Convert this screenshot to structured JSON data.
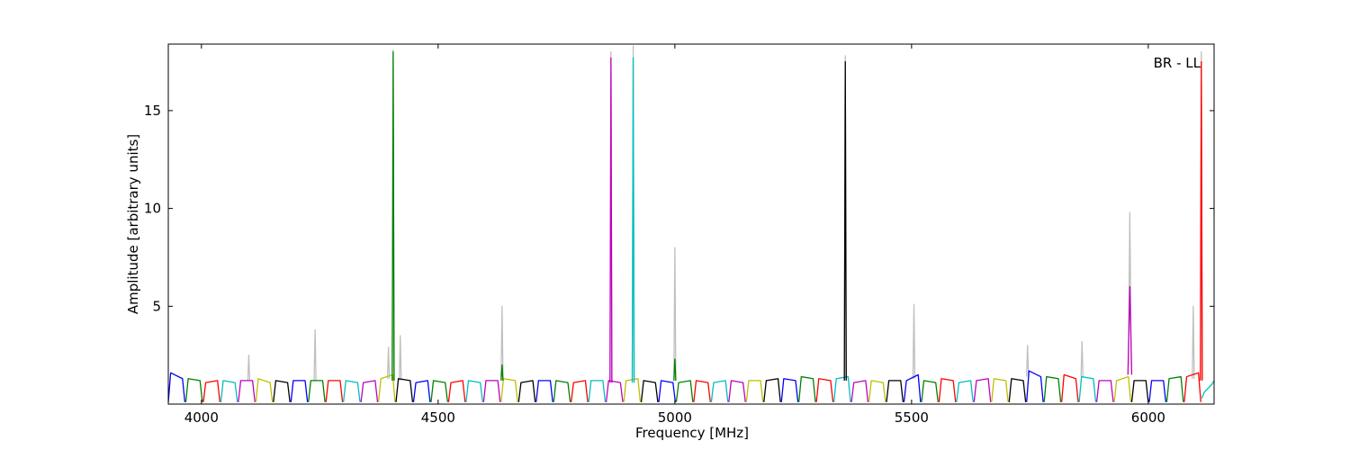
{
  "chart_data": {
    "type": "line",
    "annotation": "BR - LL",
    "x_label": "Frequency [MHz]",
    "y_label": "Amplitude [arbitrary units]",
    "xlim": [
      3930,
      6139
    ],
    "ylim": [
      0,
      18.4
    ],
    "xticks": [
      4000,
      4500,
      5000,
      5500,
      6000
    ],
    "yticks": [
      5,
      10,
      15
    ],
    "series": [
      {
        "color": "#bfbfbf",
        "x": [
          4098,
          4100,
          4102,
          null,
          4238,
          4240,
          4242,
          null,
          4393,
          4395,
          4397,
          null,
          4403,
          4405,
          4407,
          null,
          4418,
          4420,
          4422,
          null,
          4633,
          4635,
          4637,
          null,
          4863,
          4865,
          4867,
          null,
          4910,
          4912,
          4914,
          null,
          4998,
          5000,
          5002,
          null,
          5358,
          5360,
          5362,
          null,
          5503,
          5505,
          5507,
          null,
          5743,
          5745,
          5747,
          null,
          5858,
          5860,
          5862,
          null,
          5958,
          5961,
          5964,
          null,
          6093,
          6095,
          6097,
          null,
          6110,
          6112,
          6114
        ],
        "values": [
          1.2,
          2.5,
          1.2,
          null,
          1.2,
          3.8,
          1.2,
          null,
          1.3,
          2.9,
          1.3,
          null,
          1.2,
          18.1,
          1.2,
          null,
          1.2,
          3.5,
          1.2,
          null,
          1.3,
          5.0,
          1.3,
          null,
          1.1,
          18.0,
          1.1,
          null,
          1.1,
          18.3,
          1.1,
          null,
          1.2,
          8.0,
          1.2,
          null,
          1.2,
          17.8,
          1.2,
          null,
          1.3,
          5.1,
          1.3,
          null,
          1.4,
          3.0,
          1.4,
          null,
          1.4,
          3.2,
          1.4,
          null,
          2.0,
          9.8,
          2.0,
          null,
          1.3,
          5.0,
          1.3,
          null,
          1.3,
          18.0,
          1.3
        ]
      },
      {
        "color": "#0000ff",
        "x": [
          3930,
          3935,
          3960,
          3965
        ],
        "values": [
          0.1,
          1.6,
          1.3,
          0.1
        ]
      },
      {
        "color": "#008000",
        "x": [
          3967,
          3972,
          3997,
          4002
        ],
        "values": [
          0.1,
          1.3,
          1.2,
          0.1
        ]
      },
      {
        "color": "#ff0000",
        "x": [
          4004,
          4009,
          4034,
          4039
        ],
        "values": [
          0.1,
          1.1,
          1.2,
          0.1
        ]
      },
      {
        "color": "#00bfbf",
        "x": [
          4041,
          4046,
          4071,
          4076
        ],
        "values": [
          0.1,
          1.2,
          1.1,
          0.1
        ]
      },
      {
        "color": "#bf00bf",
        "x": [
          4078,
          4083,
          4108,
          4113
        ],
        "values": [
          0.1,
          1.2,
          1.2,
          0.1
        ]
      },
      {
        "color": "#bfbf00",
        "x": [
          4115,
          4120,
          4145,
          4150
        ],
        "values": [
          0.1,
          1.3,
          1.1,
          0.1
        ]
      },
      {
        "color": "#000000",
        "x": [
          4152,
          4157,
          4182,
          4187
        ],
        "values": [
          0.1,
          1.2,
          1.1,
          0.1
        ]
      },
      {
        "color": "#0000ff",
        "x": [
          4189,
          4194,
          4219,
          4224
        ],
        "values": [
          0.1,
          1.2,
          1.2,
          0.1
        ]
      },
      {
        "color": "#008000",
        "x": [
          4226,
          4231,
          4256,
          4261
        ],
        "values": [
          0.1,
          1.2,
          1.2,
          0.1
        ]
      },
      {
        "color": "#ff0000",
        "x": [
          4263,
          4268,
          4293,
          4298
        ],
        "values": [
          0.1,
          1.2,
          1.2,
          0.1
        ]
      },
      {
        "color": "#00bfbf",
        "x": [
          4300,
          4305,
          4330,
          4335
        ],
        "values": [
          0.1,
          1.2,
          1.1,
          0.1
        ]
      },
      {
        "color": "#bf00bf",
        "x": [
          4337,
          4342,
          4367,
          4372
        ],
        "values": [
          0.1,
          1.1,
          1.2,
          0.1
        ]
      },
      {
        "color": "#bfbf00",
        "x": [
          4374,
          4379,
          4404,
          4409
        ],
        "values": [
          0.1,
          1.3,
          1.5,
          0.1
        ]
      },
      {
        "color": "#000000",
        "x": [
          4411,
          4416,
          4441,
          4446
        ],
        "values": [
          0.1,
          1.3,
          1.2,
          0.1
        ]
      },
      {
        "color": "#0000ff",
        "x": [
          4448,
          4453,
          4478,
          4483
        ],
        "values": [
          0.1,
          1.1,
          1.2,
          0.1
        ]
      },
      {
        "color": "#008000",
        "x": [
          4485,
          4490,
          4515,
          4520
        ],
        "values": [
          0.1,
          1.2,
          1.1,
          0.1
        ]
      },
      {
        "color": "#ff0000",
        "x": [
          4522,
          4527,
          4552,
          4557
        ],
        "values": [
          0.1,
          1.1,
          1.2,
          0.1
        ]
      },
      {
        "color": "#00bfbf",
        "x": [
          4559,
          4564,
          4589,
          4594
        ],
        "values": [
          0.1,
          1.2,
          1.1,
          0.1
        ]
      },
      {
        "color": "#bf00bf",
        "x": [
          4596,
          4601,
          4626,
          4631
        ],
        "values": [
          0.1,
          1.2,
          1.2,
          0.1
        ]
      },
      {
        "color": "#bfbf00",
        "x": [
          4633,
          4638,
          4663,
          4668
        ],
        "values": [
          0.1,
          1.3,
          1.2,
          0.1
        ]
      },
      {
        "color": "#000000",
        "x": [
          4670,
          4675,
          4700,
          4705
        ],
        "values": [
          0.1,
          1.1,
          1.2,
          0.1
        ]
      },
      {
        "color": "#0000ff",
        "x": [
          4707,
          4712,
          4737,
          4742
        ],
        "values": [
          0.1,
          1.2,
          1.2,
          0.1
        ]
      },
      {
        "color": "#008000",
        "x": [
          4744,
          4749,
          4774,
          4779
        ],
        "values": [
          0.1,
          1.2,
          1.1,
          0.1
        ]
      },
      {
        "color": "#ff0000",
        "x": [
          4781,
          4786,
          4811,
          4816
        ],
        "values": [
          0.1,
          1.1,
          1.2,
          0.1
        ]
      },
      {
        "color": "#00bfbf",
        "x": [
          4818,
          4823,
          4848,
          4853
        ],
        "values": [
          0.1,
          1.2,
          1.2,
          0.1
        ]
      },
      {
        "color": "#bf00bf",
        "x": [
          4855,
          4860,
          4885,
          4890
        ],
        "values": [
          0.1,
          1.2,
          1.1,
          0.1
        ]
      },
      {
        "color": "#bfbf00",
        "x": [
          4892,
          4897,
          4922,
          4927
        ],
        "values": [
          0.1,
          1.2,
          1.3,
          0.1
        ]
      },
      {
        "color": "#000000",
        "x": [
          4929,
          4934,
          4959,
          4964
        ],
        "values": [
          0.1,
          1.2,
          1.1,
          0.1
        ]
      },
      {
        "color": "#0000ff",
        "x": [
          4966,
          4971,
          4996,
          5001
        ],
        "values": [
          0.1,
          1.2,
          1.1,
          0.1
        ]
      },
      {
        "color": "#008000",
        "x": [
          5003,
          5008,
          5033,
          5038
        ],
        "values": [
          0.1,
          1.1,
          1.2,
          0.1
        ]
      },
      {
        "color": "#ff0000",
        "x": [
          5040,
          5045,
          5070,
          5075
        ],
        "values": [
          0.1,
          1.2,
          1.1,
          0.1
        ]
      },
      {
        "color": "#00bfbf",
        "x": [
          5077,
          5082,
          5107,
          5112
        ],
        "values": [
          0.1,
          1.1,
          1.2,
          0.1
        ]
      },
      {
        "color": "#bf00bf",
        "x": [
          5114,
          5119,
          5144,
          5149
        ],
        "values": [
          0.1,
          1.2,
          1.1,
          0.1
        ]
      },
      {
        "color": "#bfbf00",
        "x": [
          5151,
          5156,
          5181,
          5186
        ],
        "values": [
          0.1,
          1.2,
          1.2,
          0.1
        ]
      },
      {
        "color": "#000000",
        "x": [
          5188,
          5193,
          5218,
          5223
        ],
        "values": [
          0.1,
          1.2,
          1.3,
          0.1
        ]
      },
      {
        "color": "#0000ff",
        "x": [
          5225,
          5230,
          5255,
          5260
        ],
        "values": [
          0.1,
          1.3,
          1.2,
          0.1
        ]
      },
      {
        "color": "#008000",
        "x": [
          5262,
          5267,
          5292,
          5297
        ],
        "values": [
          0.1,
          1.4,
          1.3,
          0.1
        ]
      },
      {
        "color": "#ff0000",
        "x": [
          5299,
          5304,
          5329,
          5334
        ],
        "values": [
          0.1,
          1.3,
          1.2,
          0.1
        ]
      },
      {
        "color": "#00bfbf",
        "x": [
          5336,
          5341,
          5366,
          5371
        ],
        "values": [
          0.1,
          1.3,
          1.4,
          0.1
        ]
      },
      {
        "color": "#bf00bf",
        "x": [
          5373,
          5378,
          5403,
          5408
        ],
        "values": [
          0.1,
          1.1,
          1.2,
          0.1
        ]
      },
      {
        "color": "#bfbf00",
        "x": [
          5410,
          5415,
          5440,
          5445
        ],
        "values": [
          0.1,
          1.2,
          1.1,
          0.1
        ]
      },
      {
        "color": "#000000",
        "x": [
          5447,
          5452,
          5477,
          5482
        ],
        "values": [
          0.1,
          1.2,
          1.2,
          0.1
        ]
      },
      {
        "color": "#0000ff",
        "x": [
          5484,
          5489,
          5514,
          5519
        ],
        "values": [
          0.1,
          1.2,
          1.5,
          0.1
        ]
      },
      {
        "color": "#008000",
        "x": [
          5521,
          5526,
          5551,
          5556
        ],
        "values": [
          0.1,
          1.2,
          1.1,
          0.1
        ]
      },
      {
        "color": "#ff0000",
        "x": [
          5558,
          5563,
          5588,
          5593
        ],
        "values": [
          0.1,
          1.3,
          1.2,
          0.1
        ]
      },
      {
        "color": "#00bfbf",
        "x": [
          5595,
          5600,
          5625,
          5630
        ],
        "values": [
          0.1,
          1.1,
          1.2,
          0.1
        ]
      },
      {
        "color": "#bf00bf",
        "x": [
          5632,
          5637,
          5662,
          5667
        ],
        "values": [
          0.1,
          1.2,
          1.3,
          0.1
        ]
      },
      {
        "color": "#bfbf00",
        "x": [
          5669,
          5674,
          5699,
          5704
        ],
        "values": [
          0.1,
          1.3,
          1.2,
          0.1
        ]
      },
      {
        "color": "#000000",
        "x": [
          5706,
          5711,
          5736,
          5741
        ],
        "values": [
          0.1,
          1.3,
          1.2,
          0.1
        ]
      },
      {
        "color": "#0000ff",
        "x": [
          5743,
          5748,
          5773,
          5778
        ],
        "values": [
          0.1,
          1.7,
          1.4,
          0.1
        ]
      },
      {
        "color": "#008000",
        "x": [
          5780,
          5785,
          5810,
          5815
        ],
        "values": [
          0.1,
          1.4,
          1.3,
          0.1
        ]
      },
      {
        "color": "#ff0000",
        "x": [
          5817,
          5822,
          5847,
          5852
        ],
        "values": [
          0.1,
          1.5,
          1.3,
          0.1
        ]
      },
      {
        "color": "#00bfbf",
        "x": [
          5854,
          5859,
          5884,
          5889
        ],
        "values": [
          0.1,
          1.4,
          1.3,
          0.1
        ]
      },
      {
        "color": "#bf00bf",
        "x": [
          5891,
          5896,
          5921,
          5926
        ],
        "values": [
          0.1,
          1.2,
          1.2,
          0.1
        ]
      },
      {
        "color": "#bfbf00",
        "x": [
          5928,
          5933,
          5958,
          5963
        ],
        "values": [
          0.1,
          1.2,
          1.4,
          0.1
        ]
      },
      {
        "color": "#000000",
        "x": [
          5965,
          5970,
          5995,
          6000
        ],
        "values": [
          0.1,
          1.2,
          1.2,
          0.1
        ]
      },
      {
        "color": "#0000ff",
        "x": [
          6002,
          6007,
          6032,
          6037
        ],
        "values": [
          0.1,
          1.2,
          1.2,
          0.1
        ]
      },
      {
        "color": "#008000",
        "x": [
          6039,
          6044,
          6069,
          6074
        ],
        "values": [
          0.1,
          1.3,
          1.4,
          0.1
        ]
      },
      {
        "color": "#ff0000",
        "x": [
          6076,
          6081,
          6106,
          6111
        ],
        "values": [
          0.1,
          1.4,
          1.6,
          0.1
        ]
      },
      {
        "color": "#00bfbf",
        "x": [
          6113,
          6118,
          6134,
          6139
        ],
        "values": [
          0.3,
          0.6,
          1.0,
          1.2
        ]
      },
      {
        "color": "#008000",
        "x": [
          4403,
          4405,
          4407
        ],
        "values": [
          1.2,
          18.0,
          1.2
        ]
      },
      {
        "color": "#008000",
        "x": [
          4633,
          4635,
          4637
        ],
        "values": [
          1.2,
          2.0,
          1.2
        ]
      },
      {
        "color": "#bf00bf",
        "x": [
          4863,
          4865,
          4867
        ],
        "values": [
          1.1,
          17.7,
          1.1
        ]
      },
      {
        "color": "#00bfbf",
        "x": [
          4910,
          4912,
          4914
        ],
        "values": [
          1.1,
          17.7,
          1.1
        ]
      },
      {
        "color": "#008000",
        "x": [
          4998,
          5000,
          5002
        ],
        "values": [
          1.2,
          2.3,
          1.2
        ]
      },
      {
        "color": "#000000",
        "x": [
          5358,
          5360,
          5362
        ],
        "values": [
          1.2,
          17.5,
          1.2
        ]
      },
      {
        "color": "#bf00bf",
        "x": [
          5957,
          5961,
          5965
        ],
        "values": [
          1.5,
          6.0,
          1.5
        ]
      },
      {
        "color": "#ff0000",
        "x": [
          6110,
          6112,
          6114
        ],
        "values": [
          1.2,
          17.5,
          1.2
        ]
      }
    ]
  }
}
